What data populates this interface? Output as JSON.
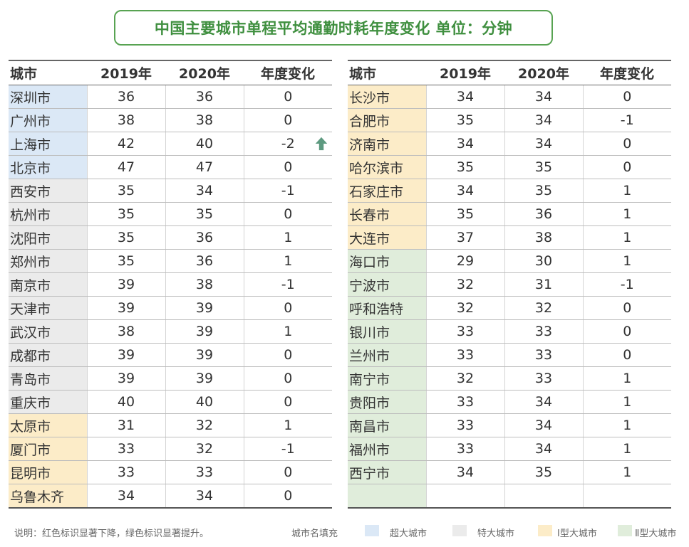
{
  "title": "中国主要城市单程平均通勤时耗年度变化  单位：分钟",
  "columns": [
    "城市",
    "2019年",
    "2020年",
    "年度变化"
  ],
  "left_table": {
    "rows": [
      {
        "city": "深圳市",
        "y2019": "36",
        "y2020": "36",
        "change": "0",
        "category": "super"
      },
      {
        "city": "广州市",
        "y2019": "38",
        "y2020": "38",
        "change": "0",
        "category": "super"
      },
      {
        "city": "上海市",
        "y2019": "42",
        "y2020": "40",
        "change": "-2",
        "category": "super",
        "marker": "arrow-up-icon"
      },
      {
        "city": "北京市",
        "y2019": "47",
        "y2020": "47",
        "change": "0",
        "category": "super"
      },
      {
        "city": "西安市",
        "y2019": "35",
        "y2020": "34",
        "change": "-1",
        "category": "mega"
      },
      {
        "city": "杭州市",
        "y2019": "35",
        "y2020": "35",
        "change": "0",
        "category": "mega"
      },
      {
        "city": "沈阳市",
        "y2019": "35",
        "y2020": "36",
        "change": "1",
        "category": "mega"
      },
      {
        "city": "郑州市",
        "y2019": "35",
        "y2020": "36",
        "change": "1",
        "category": "mega"
      },
      {
        "city": "南京市",
        "y2019": "39",
        "y2020": "38",
        "change": "-1",
        "category": "mega"
      },
      {
        "city": "天津市",
        "y2019": "39",
        "y2020": "39",
        "change": "0",
        "category": "mega"
      },
      {
        "city": "武汉市",
        "y2019": "38",
        "y2020": "39",
        "change": "1",
        "category": "mega"
      },
      {
        "city": "成都市",
        "y2019": "39",
        "y2020": "39",
        "change": "0",
        "category": "mega"
      },
      {
        "city": "青岛市",
        "y2019": "39",
        "y2020": "39",
        "change": "0",
        "category": "mega"
      },
      {
        "city": "重庆市",
        "y2019": "40",
        "y2020": "40",
        "change": "0",
        "category": "mega"
      },
      {
        "city": "太原市",
        "y2019": "31",
        "y2020": "32",
        "change": "1",
        "category": "large1"
      },
      {
        "city": "厦门市",
        "y2019": "33",
        "y2020": "32",
        "change": "-1",
        "category": "large1"
      },
      {
        "city": "昆明市",
        "y2019": "33",
        "y2020": "33",
        "change": "0",
        "category": "large1"
      },
      {
        "city": "乌鲁木齐",
        "y2019": "34",
        "y2020": "34",
        "change": "0",
        "category": "large1"
      }
    ]
  },
  "right_table": {
    "rows": [
      {
        "city": "长沙市",
        "y2019": "34",
        "y2020": "34",
        "change": "0",
        "category": "large1"
      },
      {
        "city": "合肥市",
        "y2019": "35",
        "y2020": "34",
        "change": "-1",
        "category": "large1"
      },
      {
        "city": "济南市",
        "y2019": "34",
        "y2020": "34",
        "change": "0",
        "category": "large1"
      },
      {
        "city": "哈尔滨市",
        "y2019": "35",
        "y2020": "35",
        "change": "0",
        "category": "large1"
      },
      {
        "city": "石家庄市",
        "y2019": "34",
        "y2020": "35",
        "change": "1",
        "category": "large1"
      },
      {
        "city": "长春市",
        "y2019": "35",
        "y2020": "36",
        "change": "1",
        "category": "large1"
      },
      {
        "city": "大连市",
        "y2019": "37",
        "y2020": "38",
        "change": "1",
        "category": "large1"
      },
      {
        "city": "海口市",
        "y2019": "29",
        "y2020": "30",
        "change": "1",
        "category": "large2"
      },
      {
        "city": "宁波市",
        "y2019": "32",
        "y2020": "31",
        "change": "-1",
        "category": "large2"
      },
      {
        "city": "呼和浩特",
        "y2019": "32",
        "y2020": "32",
        "change": "0",
        "category": "large2"
      },
      {
        "city": "银川市",
        "y2019": "33",
        "y2020": "33",
        "change": "0",
        "category": "large2"
      },
      {
        "city": "兰州市",
        "y2019": "33",
        "y2020": "33",
        "change": "0",
        "category": "large2"
      },
      {
        "city": "南宁市",
        "y2019": "32",
        "y2020": "33",
        "change": "1",
        "category": "large2"
      },
      {
        "city": "贵阳市",
        "y2019": "33",
        "y2020": "34",
        "change": "1",
        "category": "large2"
      },
      {
        "city": "南昌市",
        "y2019": "33",
        "y2020": "34",
        "change": "1",
        "category": "large2"
      },
      {
        "city": "福州市",
        "y2019": "33",
        "y2020": "34",
        "change": "1",
        "category": "large2"
      },
      {
        "city": "西宁市",
        "y2019": "34",
        "y2020": "35",
        "change": "1",
        "category": "large2"
      },
      {
        "city": "",
        "y2019": "",
        "y2020": "",
        "change": "",
        "category": "large2"
      }
    ]
  },
  "legend": {
    "note": "说明：红色标识显著下降，绿色标识显著提升。",
    "fill_label": "城市名填充",
    "items": [
      {
        "key": "super",
        "label": "超大城市",
        "color": "#dbe8f6"
      },
      {
        "key": "mega",
        "label": "特大城市",
        "color": "#ebebeb"
      },
      {
        "key": "large1",
        "label": "Ⅰ型大城市",
        "color": "#fcecc8"
      },
      {
        "key": "large2",
        "label": "Ⅱ型大城市",
        "color": "#e0eddb"
      }
    ]
  },
  "colors": {
    "title_green": "#3f8f3f",
    "arrow_green": "#5d9a80"
  }
}
